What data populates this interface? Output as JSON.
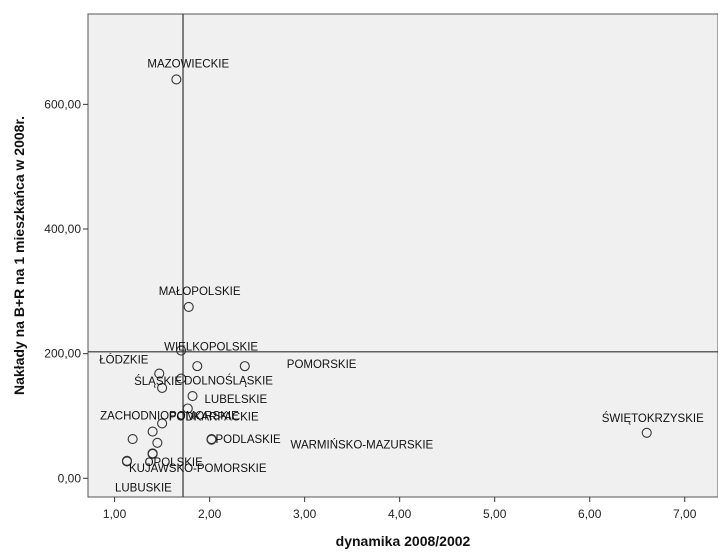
{
  "chart_data": {
    "type": "scatter",
    "title": "",
    "xlabel": "dynamika 2008/2002",
    "ylabel": "Nakłady na B+R na 1 mieszkańca w 2008r.",
    "xlim": [
      0.72,
      7.35
    ],
    "ylim": [
      -30,
      745
    ],
    "xticks": [
      1,
      2,
      3,
      4,
      5,
      6,
      7
    ],
    "xtick_labels": [
      "1,00",
      "2,00",
      "3,00",
      "4,00",
      "5,00",
      "6,00",
      "7,00"
    ],
    "yticks": [
      0,
      200,
      400,
      600
    ],
    "ytick_labels": [
      "0,00",
      "200,00",
      "400,00",
      "600,00"
    ],
    "reference_lines": {
      "x": 1.72,
      "y": 203
    },
    "grid": false,
    "colors": {
      "plot_background": "#f0f0f0",
      "marker_stroke": "#333333",
      "reference_line": "#333333"
    },
    "points": [
      {
        "x": 1.65,
        "y": 640,
        "label": "MAZOWIECKIE"
      },
      {
        "x": 1.78,
        "y": 275,
        "label": "MAŁOPOLSKIE"
      },
      {
        "x": 1.7,
        "y": 205,
        "label": "WIELKOPOLSKIE"
      },
      {
        "x": 1.47,
        "y": 168,
        "label": "ŁÓDZKIE"
      },
      {
        "x": 1.87,
        "y": 180,
        "label": ""
      },
      {
        "x": 2.37,
        "y": 180,
        "label": "POMORSKIE"
      },
      {
        "x": 1.7,
        "y": 160,
        "label": "DOLNOŚLĄSKIE"
      },
      {
        "x": 1.82,
        "y": 132,
        "label": "LUBELSKIE"
      },
      {
        "x": 1.5,
        "y": 145,
        "label": "ŚLĄSKIE"
      },
      {
        "x": 1.77,
        "y": 112,
        "label": "PODKARPACKIE"
      },
      {
        "x": 1.5,
        "y": 88,
        "label": "ZACHODNIOPOMORSKIE"
      },
      {
        "x": 1.4,
        "y": 75,
        "label": ""
      },
      {
        "x": 1.19,
        "y": 63,
        "label": ""
      },
      {
        "x": 2.02,
        "y": 63,
        "label": "PODLASKIE"
      },
      {
        "x": 2.02,
        "y": 62,
        "label": "WARMIŃSKO-MAZURSKIE"
      },
      {
        "x": 1.45,
        "y": 57,
        "label": ""
      },
      {
        "x": 1.4,
        "y": 40,
        "label": ""
      },
      {
        "x": 1.13,
        "y": 28,
        "label": "KUJAWSKO-POMORSKIE"
      },
      {
        "x": 1.13,
        "y": 27,
        "label": "LUBUSKIE"
      },
      {
        "x": 1.4,
        "y": 39,
        "label": "OPOLSKIE"
      },
      {
        "x": 6.6,
        "y": 73,
        "label": "ŚWIĘTOKRZYSKIE"
      }
    ]
  }
}
